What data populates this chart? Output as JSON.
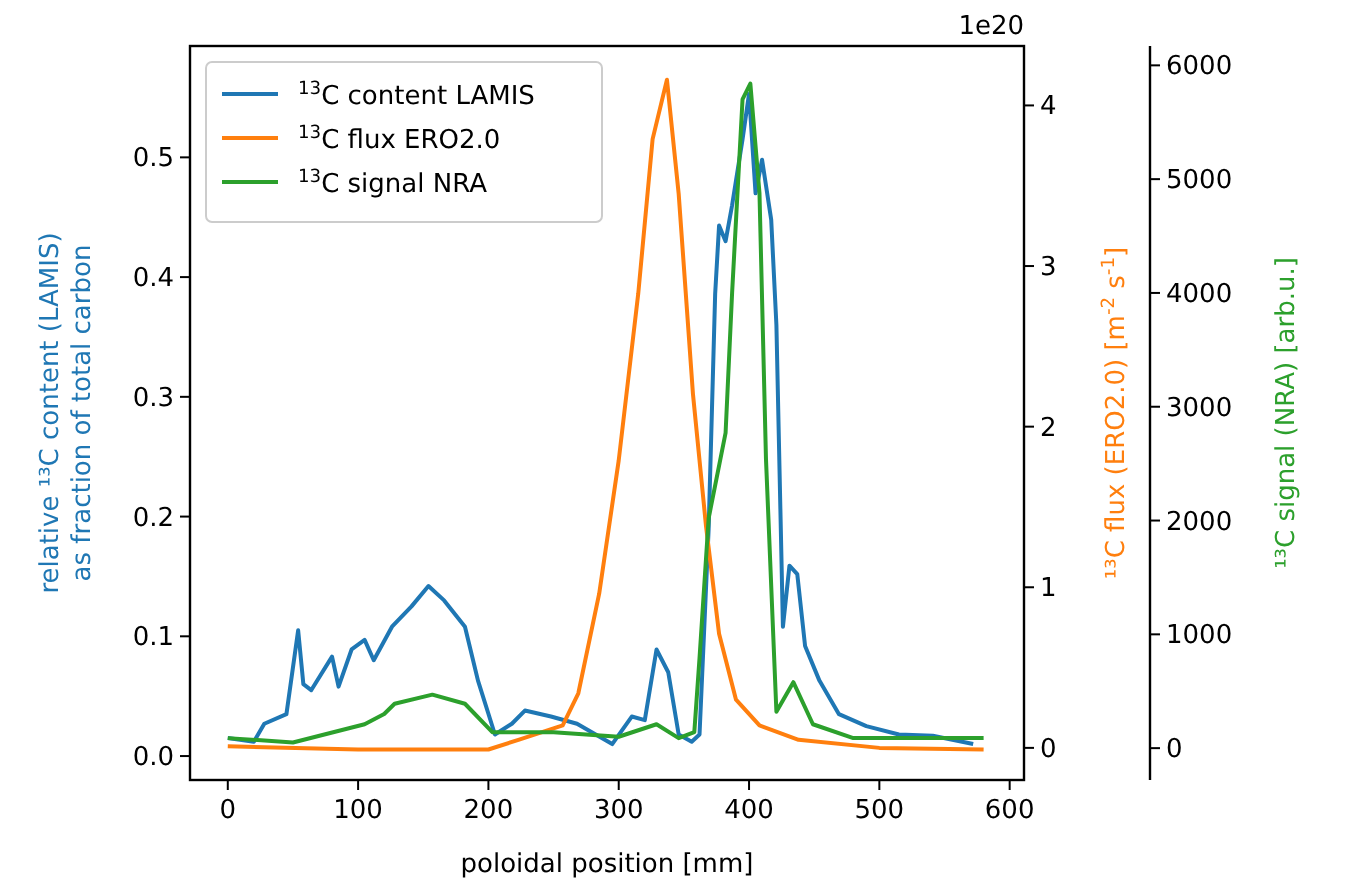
{
  "chart_data": {
    "type": "line",
    "xlabel": "poloidal position [mm]",
    "ylabel": "relative ¹³C content (LAMIS)\nas fraction of total carbon",
    "y2label": "¹³C flux (ERO2.0) [m$^{-2}$ s$^{-1}$]",
    "y3label": "¹³C signal (NRA) [arb.u.]",
    "annotations": [
      "1e20"
    ],
    "xlim": [
      -29,
      611
    ],
    "xticks": [
      0,
      100,
      200,
      300,
      400,
      500,
      600
    ],
    "ylim": [
      -0.02,
      0.593
    ],
    "yticks": [
      {
        "value": 0,
        "label": "0.0"
      },
      0.1,
      0.2,
      0.3,
      0.4,
      0.5
    ],
    "y2lim": [
      -0.2,
      4.37
    ],
    "y2ticks": [
      0,
      1,
      2,
      3,
      4
    ],
    "y3lim": [
      -280,
      6170
    ],
    "y3ticks": [
      0,
      1000,
      2000,
      3000,
      4000,
      5000,
      6000
    ],
    "legend": "top left",
    "grid": false,
    "line_style": "solid",
    "marker": "none",
    "series": [
      {
        "name": "$^{13}$C content LAMIS",
        "color": "#1f77b4",
        "x": [
          0,
          20,
          28,
          45,
          54,
          58,
          64,
          80,
          85,
          95,
          105,
          112,
          126,
          141,
          154,
          166,
          182,
          192,
          205,
          218,
          228,
          248,
          268,
          295,
          310,
          320,
          329,
          338,
          346,
          356,
          362,
          369,
          374,
          377,
          382,
          387,
          395,
          400,
          405,
          410,
          417,
          421,
          426,
          431,
          437,
          443,
          454,
          469,
          490,
          515,
          541,
          572
        ],
        "values": [
          0.015,
          0.012,
          0.027,
          0.035,
          0.105,
          0.06,
          0.055,
          0.083,
          0.058,
          0.089,
          0.097,
          0.08,
          0.108,
          0.125,
          0.142,
          0.13,
          0.108,
          0.063,
          0.018,
          0.027,
          0.038,
          0.033,
          0.027,
          0.01,
          0.033,
          0.03,
          0.089,
          0.07,
          0.018,
          0.012,
          0.018,
          0.19,
          0.386,
          0.443,
          0.43,
          0.46,
          0.515,
          0.553,
          0.47,
          0.498,
          0.448,
          0.36,
          0.108,
          0.159,
          0.152,
          0.092,
          0.063,
          0.035,
          0.025,
          0.018,
          0.017,
          0.01
        ]
      },
      {
        "name": "$^{13}$C flux ERO2.0",
        "color": "#ff7f0e",
        "axis": "y2",
        "x": [
          0,
          100,
          200,
          223,
          257,
          269,
          285,
          300,
          315,
          326,
          337,
          346,
          357,
          367,
          377,
          390,
          408,
          438,
          500,
          580
        ],
        "values": [
          0.01,
          -0.01,
          -0.01,
          0.05,
          0.14,
          0.34,
          0.96,
          1.79,
          2.83,
          3.79,
          4.16,
          3.45,
          2.2,
          1.38,
          0.71,
          0.3,
          0.14,
          0.05,
          0.0,
          -0.01
        ]
      },
      {
        "name": "$^{13}$C signal NRA",
        "color": "#2ca02c",
        "axis": "y3",
        "x": [
          0,
          50,
          105,
          120,
          128,
          157,
          182,
          203,
          250,
          300,
          329,
          346,
          358,
          362,
          369,
          382,
          387,
          395,
          401,
          408,
          413,
          421,
          434,
          449,
          480,
          580
        ],
        "values": [
          88,
          50,
          210,
          300,
          390,
          470,
          390,
          140,
          140,
          100,
          210,
          88,
          140,
          790,
          2020,
          2770,
          4000,
          5700,
          5840,
          4880,
          2540,
          320,
          580,
          210,
          88,
          88
        ]
      }
    ]
  }
}
